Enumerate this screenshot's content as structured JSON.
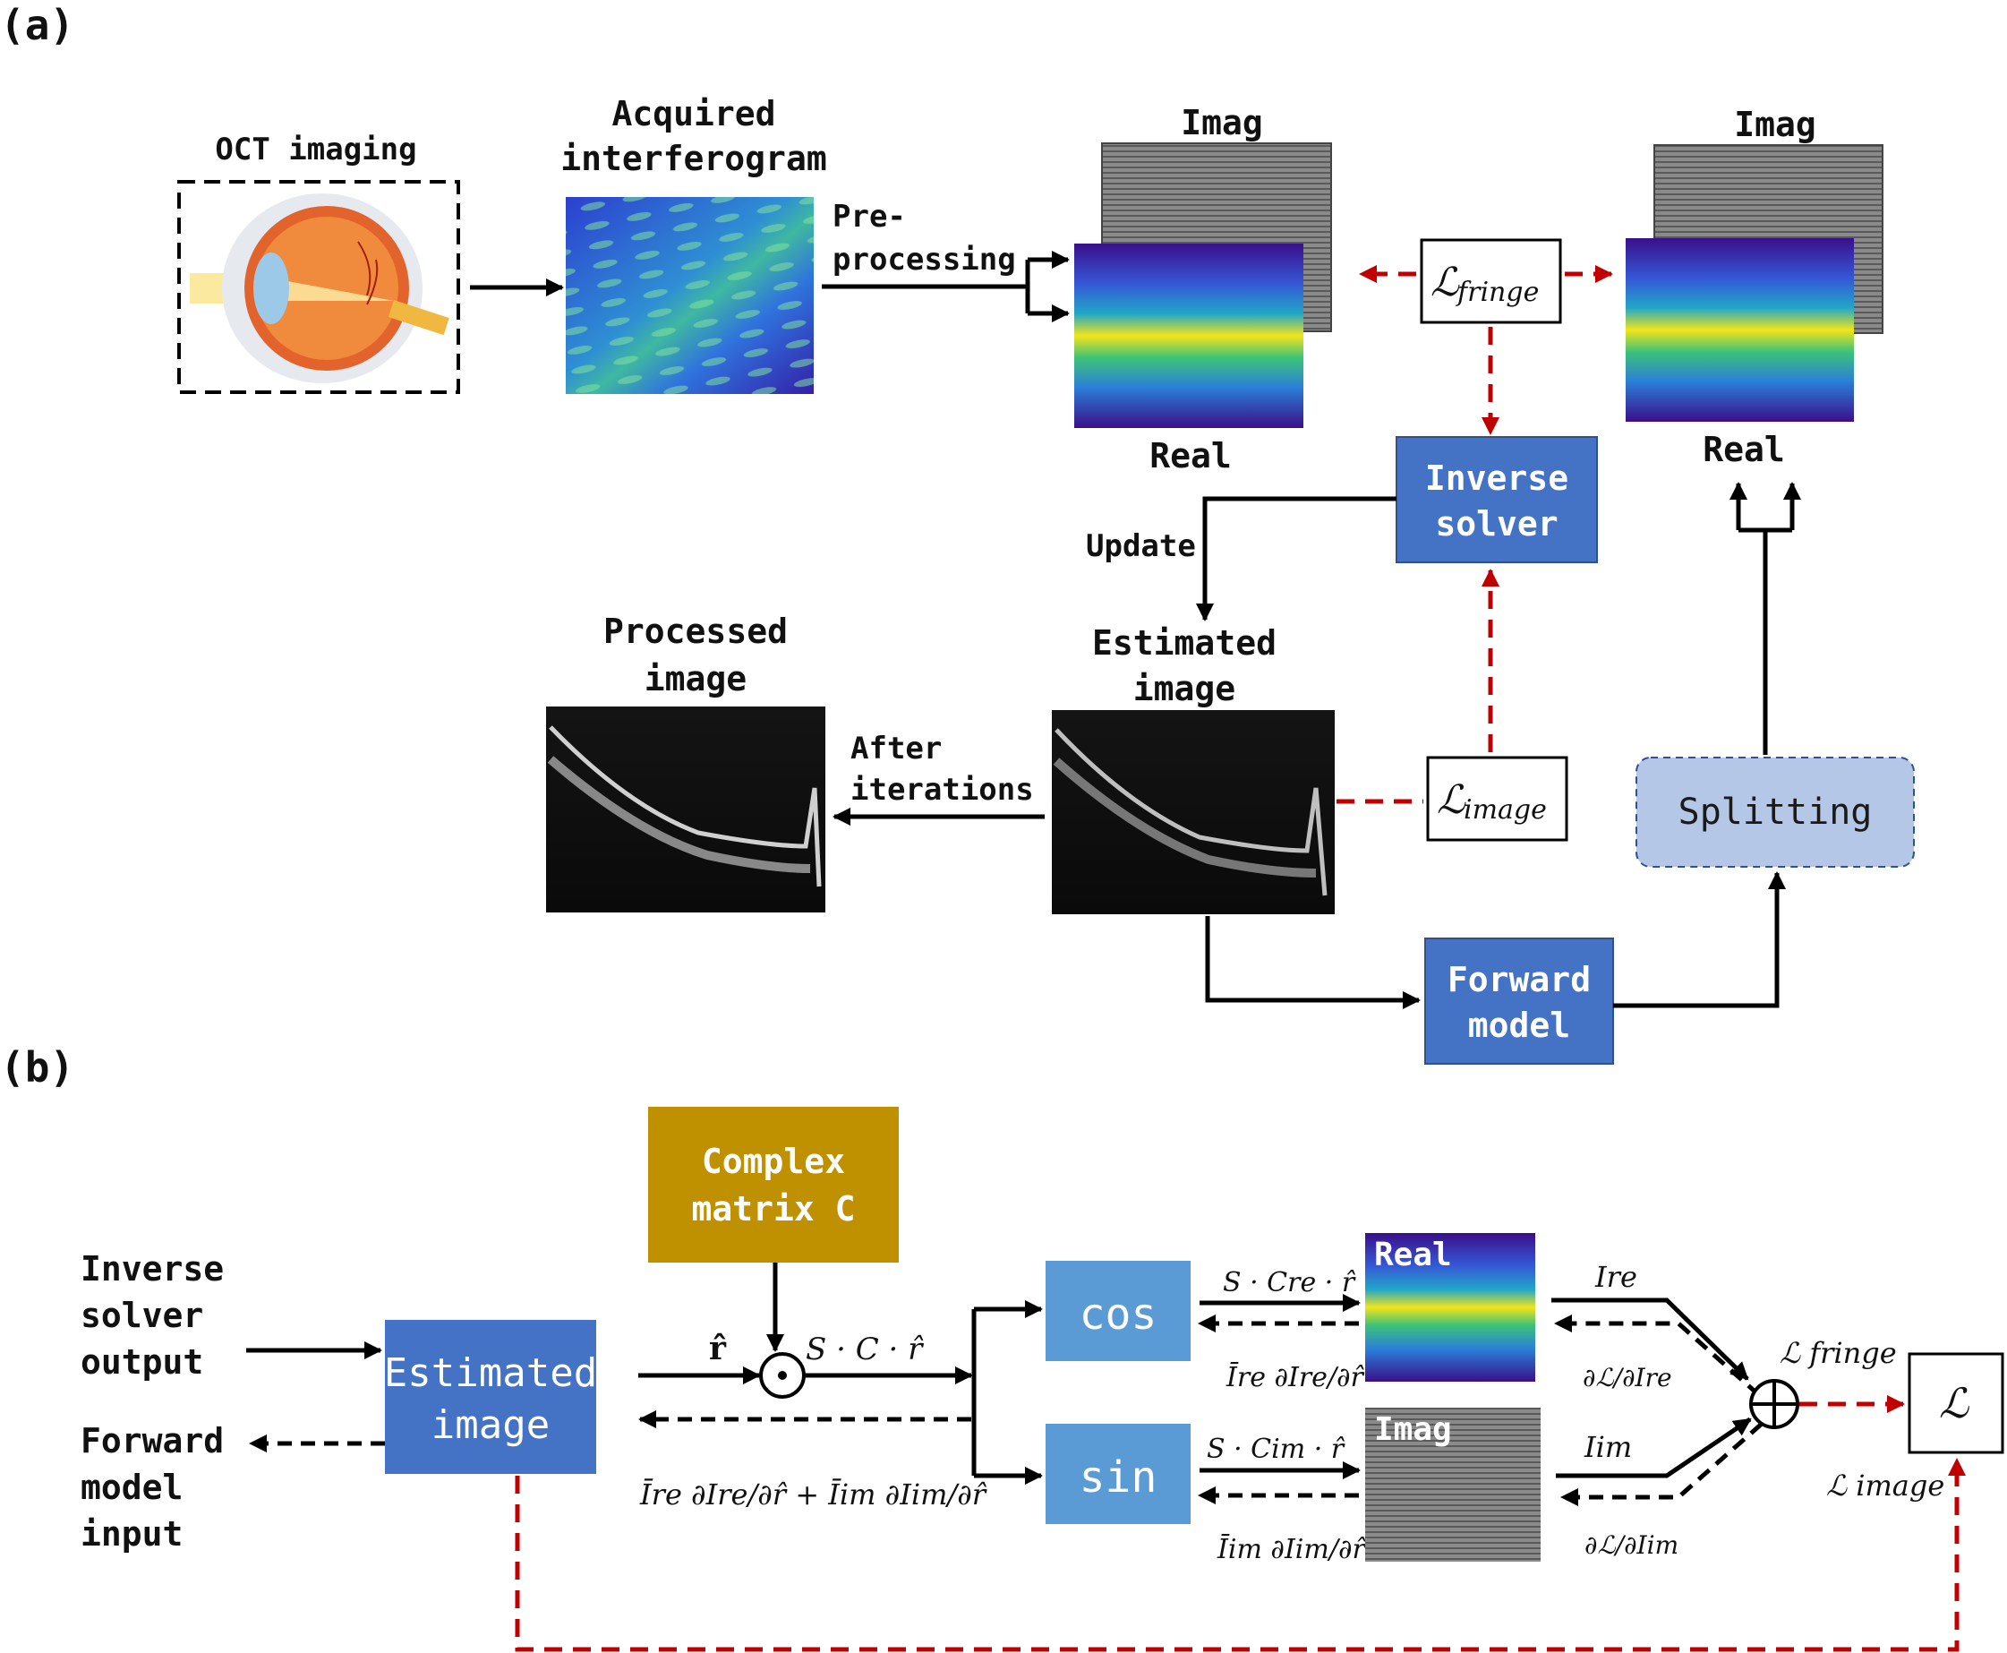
{
  "panel_a": {
    "panel_label": "(a)",
    "oct_label": "OCT imaging",
    "acquired_line1": "Acquired",
    "acquired_line2": "interferogram",
    "preproc_line1": "Pre-",
    "preproc_line2": "processing",
    "imag_label_1": "Imag",
    "real_label_1": "Real",
    "imag_label_2": "Imag",
    "real_label_2": "Real",
    "loss_fringe_main": "ℒ",
    "loss_fringe_sub": "fringe",
    "loss_image_main": "ℒ",
    "loss_image_sub": "image",
    "inverse_line1": "Inverse",
    "inverse_line2": "solver",
    "update_label": "Update",
    "estimated_line1": "Estimated",
    "estimated_line2": "image",
    "processed_line1": "Processed",
    "processed_line2": "image",
    "after_line1": "After",
    "after_line2": "iterations",
    "splitting_label": "Splitting",
    "forward_line1": "Forward",
    "forward_line2": "model"
  },
  "panel_b": {
    "panel_label": "(b)",
    "complex_line1": "Complex",
    "complex_line2": "matrix C",
    "inverse_output_line1": "Inverse",
    "inverse_output_line2": "solver",
    "inverse_output_line3": "output",
    "forward_input_line1": "Forward",
    "forward_input_line2": "model",
    "forward_input_line3": "input",
    "estimated_line1": "Estimated",
    "estimated_line2": "image",
    "cos_label": "cos",
    "sin_label": "sin",
    "real_label": "Real",
    "imag_label": "Imag",
    "r_hat": "r̂",
    "odot": "⊙",
    "oplus": "⊕",
    "s_c_r": "S · C · r̂",
    "s_cre_r": "S · Cre · r̂",
    "s_cim_r": "S · Cim · r̂",
    "backprop_expr": "Īre ∂Ire/∂r̂ + Īim ∂Iim/∂r̂",
    "ire_bar_grad": "Īre ∂Ire/∂r̂",
    "iim_bar_grad": "Īim ∂Iim/∂r̂",
    "i_re": "Ire",
    "i_im": "Iim",
    "dl_dire": "∂ℒ/∂Ire",
    "dl_diim": "∂ℒ/∂Iim",
    "loss_total": "ℒ",
    "loss_fringe": "ℒ fringe",
    "loss_image": "ℒ image"
  },
  "colors": {
    "box_blue": "#4472c4",
    "box_lightblue": "#5b9bd5",
    "box_gold": "#bf9000",
    "splitting_fill": "#b4c7e7",
    "loss_red": "#c00000"
  }
}
